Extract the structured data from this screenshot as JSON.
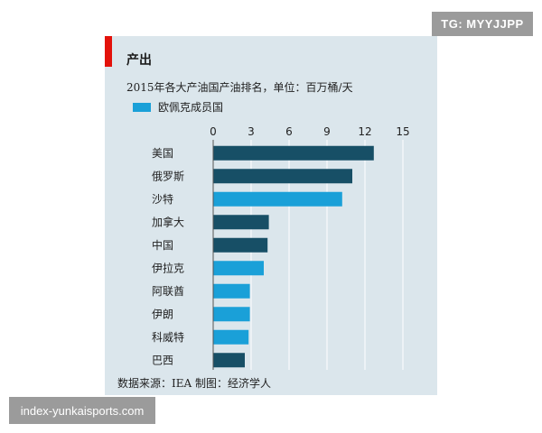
{
  "watermarks": {
    "top_right": "TG: MYYJJPP",
    "bottom_left": "index-yunkaisports.com"
  },
  "header": {
    "section_title": "产出"
  },
  "colors": {
    "non_opec": "#174f66",
    "opec": "#1aa0d8",
    "accent": "#e3120b",
    "panel": "#dbe6ec"
  },
  "legend": {
    "label": "欧佩克成员国"
  },
  "footer": {
    "source": "数据来源：IEA 制图：经济学人"
  },
  "chart_data": {
    "type": "bar",
    "orientation": "horizontal",
    "title": "2015年各大产油国产油排名，单位：百万桶/天",
    "categories": [
      "美国",
      "俄罗斯",
      "沙特",
      "加拿大",
      "中国",
      "伊拉克",
      "阿联酋",
      "伊朗",
      "科威特",
      "巴西"
    ],
    "values": [
      12.7,
      11.0,
      10.2,
      4.4,
      4.3,
      4.0,
      2.9,
      2.9,
      2.8,
      2.5
    ],
    "opec_member": [
      false,
      false,
      true,
      false,
      false,
      true,
      true,
      true,
      true,
      false
    ],
    "xlim": [
      0,
      15
    ],
    "xticks": [
      0,
      3,
      6,
      9,
      12,
      15
    ],
    "xtick_labels": [
      "0",
      "3",
      "6",
      "9",
      "12",
      "15"
    ],
    "legend_series": "欧佩克成员国",
    "legend_placement": "top-left",
    "grid": true
  }
}
